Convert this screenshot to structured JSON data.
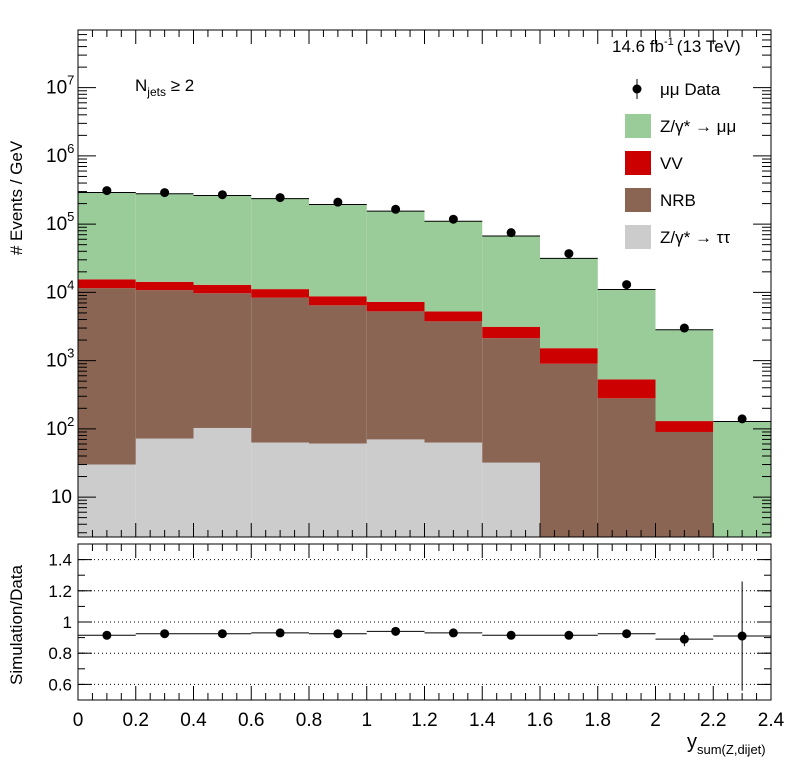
{
  "lumi_label": "14.6 fb",
  "lumi_exp": "-1",
  "lumi_energy": "(13 TeV)",
  "selection": {
    "main": "N",
    "sub": "jets",
    "rest": " ≥ 2"
  },
  "chart_data": [
    {
      "type": "bar",
      "stacked": true,
      "log_y": true,
      "ylabel": "# Events / GeV",
      "ylim": [
        2.6,
        70000000.0
      ],
      "yticks": [
        {
          "v": 10,
          "base": "10",
          "exp": ""
        },
        {
          "v": 100,
          "base": "10",
          "exp": "2"
        },
        {
          "v": 1000,
          "base": "10",
          "exp": "3"
        },
        {
          "v": 10000,
          "base": "10",
          "exp": "4"
        },
        {
          "v": 100000,
          "base": "10",
          "exp": "5"
        },
        {
          "v": 1000000,
          "base": "10",
          "exp": "6"
        },
        {
          "v": 10000000,
          "base": "10",
          "exp": "7"
        }
      ],
      "bin_edges": [
        0,
        0.2,
        0.4,
        0.6,
        0.8,
        1.0,
        1.2,
        1.4,
        1.6,
        1.8,
        2.0,
        2.2,
        2.4
      ],
      "series": [
        {
          "name": "Z/γ* → ττ",
          "color": "#cccccc",
          "values": [
            30,
            72,
            103,
            63,
            61,
            70,
            63,
            32,
            0,
            0,
            0,
            0
          ]
        },
        {
          "name": "NRB",
          "color": "#8a6553",
          "values": [
            11500,
            10700,
            9600,
            8300,
            6400,
            5200,
            3700,
            2100,
            900,
            280,
            90,
            0
          ]
        },
        {
          "name": "VV",
          "color": "#cc0000",
          "values": [
            4000,
            3500,
            3200,
            2800,
            2300,
            2000,
            1500,
            1000,
            620,
            250,
            40,
            0
          ]
        },
        {
          "name": "Z/γ* → μμ",
          "color": "#99cc99",
          "values": [
            275000,
            265000,
            250000,
            225000,
            185000,
            148000,
            105000,
            64000,
            30000,
            10500,
            2700,
            128
          ]
        }
      ],
      "data": {
        "name": "μμ Data",
        "x": [
          0.1,
          0.3,
          0.5,
          0.7,
          0.9,
          1.1,
          1.3,
          1.5,
          1.7,
          1.9,
          2.1,
          2.3
        ],
        "y": [
          310000,
          290000,
          270000,
          245000,
          210000,
          165000,
          118000,
          75000,
          37000,
          13000,
          3000,
          140
        ],
        "yerr": [
          0,
          0,
          0,
          0,
          0,
          0,
          0,
          0,
          0,
          0,
          0,
          12
        ]
      },
      "legend_position": "top-right"
    },
    {
      "type": "scatter",
      "ylabel": "Simulation/Data",
      "xlabel_main": "y",
      "xlabel_sub": "sum(Z,dijet)",
      "xlim": [
        0,
        2.4
      ],
      "ylim": [
        0.5,
        1.5
      ],
      "xticks": [
        "0",
        "0.2",
        "0.4",
        "0.6",
        "0.8",
        "1",
        "1.2",
        "1.4",
        "1.6",
        "1.8",
        "2",
        "2.2",
        "2.4"
      ],
      "yticks": [
        "0.6",
        "0.8",
        "1",
        "1.2",
        "1.4"
      ],
      "x": [
        0.1,
        0.3,
        0.5,
        0.7,
        0.9,
        1.1,
        1.3,
        1.5,
        1.7,
        1.9,
        2.1,
        2.3
      ],
      "values": [
        0.915,
        0.925,
        0.925,
        0.93,
        0.925,
        0.94,
        0.93,
        0.915,
        0.915,
        0.925,
        0.89,
        0.91
      ],
      "yerr": [
        0.005,
        0.005,
        0.005,
        0.005,
        0.005,
        0.006,
        0.006,
        0.008,
        0.01,
        0.02,
        0.045,
        0.35
      ],
      "grid": "horizontal dotted"
    }
  ]
}
